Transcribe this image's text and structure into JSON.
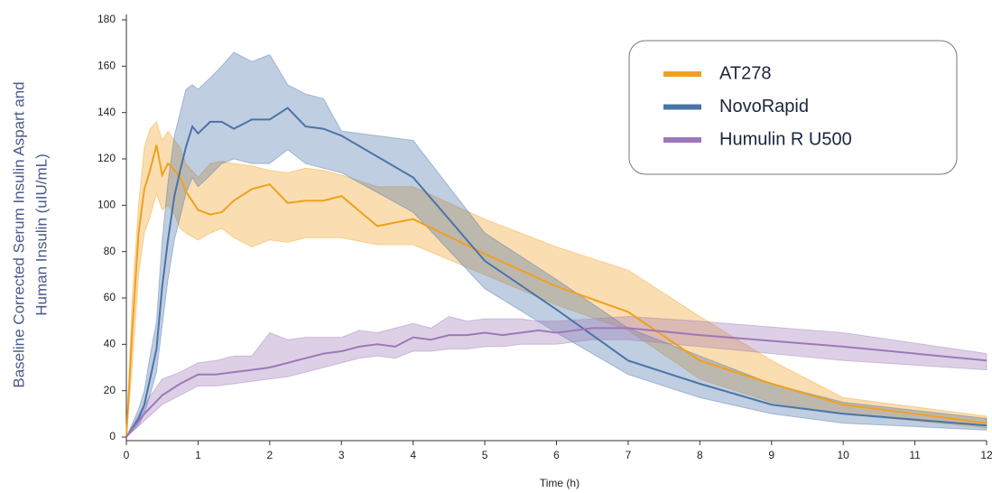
{
  "chart_data": {
    "type": "line",
    "xlabel": "Time (h)",
    "ylabel": [
      "Baseline Corrected Serum Insulin Aspart and",
      "Human Insulin (uIU/mL)"
    ],
    "xlim": [
      0,
      12
    ],
    "ylim": [
      0,
      180
    ],
    "xticks": [
      0,
      1,
      2,
      3,
      4,
      5,
      6,
      7,
      8,
      9,
      10,
      11,
      12
    ],
    "yticks": [
      0,
      20,
      40,
      60,
      80,
      100,
      120,
      140,
      160,
      180
    ],
    "grid": false,
    "legend": "upper right",
    "series": [
      {
        "name": "AT278",
        "color": "#f0a020",
        "x": [
          0,
          0.08,
          0.17,
          0.25,
          0.33,
          0.42,
          0.5,
          0.58,
          0.67,
          0.75,
          0.83,
          1,
          1.17,
          1.33,
          1.5,
          1.75,
          2,
          2.25,
          2.5,
          2.75,
          3,
          3.5,
          4,
          5,
          6,
          7,
          8,
          9,
          10,
          12
        ],
        "values": [
          0,
          45,
          88,
          107,
          115,
          126,
          113,
          118,
          115,
          112,
          106,
          98,
          96,
          97,
          102,
          107,
          109,
          101,
          102,
          102,
          104,
          91,
          94,
          79,
          65,
          54,
          33,
          23,
          14,
          6
        ],
        "upper": [
          0,
          60,
          100,
          125,
          133,
          136,
          128,
          132,
          128,
          125,
          118,
          112,
          118,
          119,
          118,
          117,
          115,
          114,
          116,
          115,
          113,
          108,
          108,
          94,
          82,
          72,
          52,
          33,
          17,
          9
        ],
        "lower": [
          0,
          30,
          70,
          88,
          95,
          105,
          98,
          100,
          96,
          90,
          88,
          85,
          88,
          90,
          86,
          82,
          85,
          84,
          86,
          86,
          86,
          83,
          83,
          70,
          57,
          46,
          25,
          15,
          10,
          4
        ]
      },
      {
        "name": "NovoRapid",
        "color": "#4a74a8",
        "x": [
          0,
          0.17,
          0.25,
          0.33,
          0.42,
          0.5,
          0.58,
          0.67,
          0.75,
          0.83,
          0.92,
          1,
          1.17,
          1.33,
          1.5,
          1.75,
          2,
          2.25,
          2.5,
          2.75,
          3,
          4,
          5,
          6,
          7,
          8,
          9,
          10,
          12
        ],
        "values": [
          0,
          8,
          14,
          25,
          38,
          65,
          85,
          104,
          115,
          125,
          134,
          131,
          136,
          136,
          133,
          137,
          137,
          142,
          134,
          133,
          130,
          112,
          76,
          55,
          33,
          23,
          14,
          10,
          5
        ],
        "upper": [
          0,
          12,
          20,
          35,
          50,
          85,
          110,
          130,
          140,
          150,
          152,
          150,
          155,
          160,
          166,
          162,
          165,
          152,
          148,
          146,
          132,
          128,
          88,
          68,
          47,
          35,
          23,
          15,
          8
        ],
        "lower": [
          0,
          5,
          10,
          18,
          28,
          48,
          68,
          85,
          95,
          105,
          112,
          108,
          113,
          118,
          120,
          118,
          118,
          124,
          118,
          116,
          114,
          97,
          64,
          45,
          27,
          17,
          10,
          6,
          3
        ]
      },
      {
        "name": "Humulin R U500",
        "color": "#9e78b8",
        "x": [
          0,
          0.25,
          0.5,
          0.75,
          1,
          1.25,
          1.5,
          1.75,
          2,
          2.25,
          2.5,
          2.75,
          3,
          3.25,
          3.5,
          3.75,
          4,
          4.25,
          4.5,
          4.75,
          5,
          5.25,
          5.5,
          5.75,
          6,
          6.5,
          7,
          8,
          10,
          12
        ],
        "values": [
          0,
          10,
          18,
          23,
          27,
          27,
          28,
          29,
          30,
          32,
          34,
          36,
          37,
          39,
          40,
          39,
          43,
          42,
          44,
          44,
          45,
          44,
          45,
          46,
          45,
          47,
          47,
          44,
          39,
          33
        ],
        "upper": [
          0,
          14,
          25,
          28,
          32,
          33,
          35,
          35,
          45,
          42,
          43,
          43,
          43,
          46,
          45,
          47,
          49,
          47,
          52,
          50,
          51,
          51,
          51,
          50,
          50,
          51,
          52,
          50,
          45,
          36
        ],
        "lower": [
          0,
          7,
          14,
          18,
          22,
          22,
          23,
          24,
          25,
          26,
          28,
          30,
          32,
          34,
          35,
          34,
          37,
          37,
          38,
          38,
          39,
          39,
          40,
          40,
          40,
          42,
          42,
          39,
          33,
          29
        ]
      }
    ]
  }
}
